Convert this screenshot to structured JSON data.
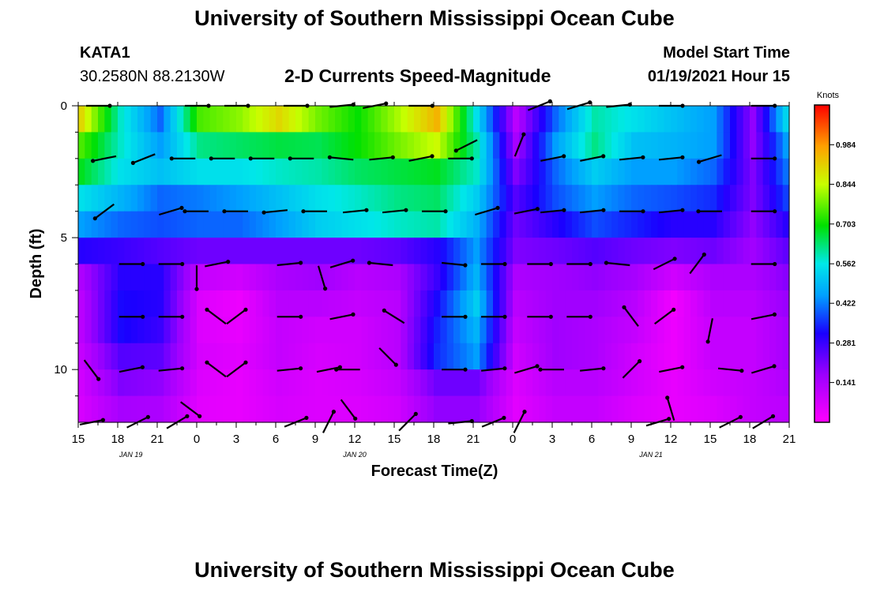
{
  "header": {
    "title": "University of Southern Mississippi Ocean Cube",
    "footer_title": "University of Southern Mississippi Ocean Cube",
    "station_id": "KATA1",
    "station_coords": "30.2580N 88.2130W",
    "subtitle": "2-D Currents Speed-Magnitude",
    "model_start_label": "Model Start Time",
    "model_start_value": "01/19/2021 Hour 15"
  },
  "chart_data": {
    "type": "heatmap",
    "xlabel": "Forecast Time(Z)",
    "ylabel": "Depth (ft)",
    "x_range_hours": [
      0,
      54
    ],
    "y_range_ft": [
      0,
      12
    ],
    "x_ticks": [
      {
        "hour": 0,
        "label": "15"
      },
      {
        "hour": 3,
        "label": "18"
      },
      {
        "hour": 6,
        "label": "21"
      },
      {
        "hour": 9,
        "label": "0"
      },
      {
        "hour": 12,
        "label": "3"
      },
      {
        "hour": 15,
        "label": "6"
      },
      {
        "hour": 18,
        "label": "9"
      },
      {
        "hour": 21,
        "label": "12"
      },
      {
        "hour": 24,
        "label": "15"
      },
      {
        "hour": 27,
        "label": "18"
      },
      {
        "hour": 30,
        "label": "21"
      },
      {
        "hour": 33,
        "label": "0"
      },
      {
        "hour": 36,
        "label": "3"
      },
      {
        "hour": 39,
        "label": "6"
      },
      {
        "hour": 42,
        "label": "9"
      },
      {
        "hour": 45,
        "label": "12"
      },
      {
        "hour": 48,
        "label": "15"
      },
      {
        "hour": 51,
        "label": "18"
      },
      {
        "hour": 54,
        "label": "21"
      }
    ],
    "y_ticks": [
      {
        "depth": 0,
        "label": "0"
      },
      {
        "depth": 5,
        "label": "5"
      },
      {
        "depth": 10,
        "label": "10"
      }
    ],
    "date_labels": [
      {
        "hour": 4,
        "label": "JAN 19"
      },
      {
        "hour": 21,
        "label": "JAN 20"
      },
      {
        "hour": 43.5,
        "label": "JAN 21"
      }
    ],
    "colorbar": {
      "unit": "Knots",
      "min": 0.0,
      "max": 1.125,
      "ticks": [
        "0.984",
        "0.844",
        "0.703",
        "0.562",
        "0.422",
        "0.281",
        "0.141"
      ],
      "tick_values": [
        0.984,
        0.844,
        0.703,
        0.562,
        0.422,
        0.281,
        0.141
      ]
    },
    "depth_levels_ft": [
      0.5,
      1.5,
      2.5,
      3.5,
      4.5,
      5.5,
      6.5,
      7.5,
      8.5,
      9.5,
      10.5,
      11.5
    ],
    "time_columns_hours": [
      0,
      3,
      6,
      9,
      12,
      15,
      18,
      21,
      24,
      27,
      30,
      33,
      36,
      39,
      42,
      45,
      48,
      51,
      54
    ],
    "speed_knots": [
      [
        0.9,
        0.58,
        0.4,
        0.75,
        0.8,
        0.9,
        0.78,
        0.7,
        0.82,
        0.95,
        0.55,
        0.12,
        0.4,
        0.6,
        0.55,
        0.5,
        0.45,
        0.18,
        0.6
      ],
      [
        0.75,
        0.58,
        0.45,
        0.62,
        0.64,
        0.66,
        0.65,
        0.7,
        0.78,
        0.85,
        0.6,
        0.15,
        0.45,
        0.62,
        0.5,
        0.48,
        0.45,
        0.18,
        0.5
      ],
      [
        0.68,
        0.55,
        0.5,
        0.55,
        0.55,
        0.58,
        0.6,
        0.64,
        0.66,
        0.68,
        0.58,
        0.2,
        0.4,
        0.52,
        0.45,
        0.45,
        0.4,
        0.2,
        0.45
      ],
      [
        0.55,
        0.48,
        0.4,
        0.42,
        0.45,
        0.5,
        0.55,
        0.58,
        0.62,
        0.64,
        0.52,
        0.25,
        0.38,
        0.45,
        0.4,
        0.38,
        0.35,
        0.2,
        0.4
      ],
      [
        0.45,
        0.4,
        0.38,
        0.4,
        0.4,
        0.45,
        0.52,
        0.55,
        0.58,
        0.6,
        0.48,
        0.22,
        0.3,
        0.38,
        0.34,
        0.3,
        0.3,
        0.18,
        0.32
      ],
      [
        0.3,
        0.28,
        0.25,
        0.22,
        0.22,
        0.22,
        0.22,
        0.22,
        0.24,
        0.3,
        0.45,
        0.2,
        0.22,
        0.25,
        0.22,
        0.2,
        0.22,
        0.16,
        0.25
      ],
      [
        0.14,
        0.3,
        0.3,
        0.1,
        0.08,
        0.14,
        0.16,
        0.12,
        0.14,
        0.28,
        0.48,
        0.14,
        0.16,
        0.18,
        0.15,
        0.08,
        0.14,
        0.14,
        0.2
      ],
      [
        0.12,
        0.32,
        0.3,
        0.06,
        0.03,
        0.12,
        0.12,
        0.1,
        0.12,
        0.32,
        0.52,
        0.12,
        0.16,
        0.16,
        0.12,
        0.02,
        0.12,
        0.12,
        0.18
      ],
      [
        0.12,
        0.32,
        0.28,
        0.06,
        0.04,
        0.1,
        0.08,
        0.08,
        0.12,
        0.34,
        0.48,
        0.1,
        0.16,
        0.14,
        0.1,
        0.03,
        0.1,
        0.1,
        0.16
      ],
      [
        0.1,
        0.25,
        0.24,
        0.07,
        0.05,
        0.1,
        0.07,
        0.08,
        0.12,
        0.35,
        0.45,
        0.08,
        0.16,
        0.14,
        0.08,
        0.03,
        0.1,
        0.1,
        0.16
      ],
      [
        0.08,
        0.2,
        0.18,
        0.06,
        0.04,
        0.08,
        0.06,
        0.07,
        0.1,
        0.22,
        0.22,
        0.06,
        0.12,
        0.12,
        0.08,
        0.04,
        0.08,
        0.1,
        0.14
      ],
      [
        0.07,
        0.15,
        0.14,
        0.05,
        0.04,
        0.07,
        0.06,
        0.06,
        0.08,
        0.18,
        0.18,
        0.05,
        0.1,
        0.1,
        0.06,
        0.04,
        0.06,
        0.1,
        0.12
      ]
    ],
    "vectors": [
      {
        "hour": 1.5,
        "depth": 0,
        "dx": 1,
        "dy": 0
      },
      {
        "hour": 9,
        "depth": 0,
        "dx": 1,
        "dy": 0
      },
      {
        "hour": 12,
        "depth": 0,
        "dx": 1,
        "dy": 0
      },
      {
        "hour": 16.5,
        "depth": 0,
        "dx": 1,
        "dy": 0
      },
      {
        "hour": 20,
        "depth": 0,
        "dx": 1,
        "dy": 0.1
      },
      {
        "hour": 22.5,
        "depth": 0,
        "dx": 1,
        "dy": 0.2
      },
      {
        "hour": 26,
        "depth": 0,
        "dx": 1,
        "dy": 0
      },
      {
        "hour": 35,
        "depth": 0,
        "dx": 1,
        "dy": 0.4
      },
      {
        "hour": 38,
        "depth": 0,
        "dx": 1,
        "dy": 0.3
      },
      {
        "hour": 41,
        "depth": 0,
        "dx": 1,
        "dy": 0.1
      },
      {
        "hour": 45,
        "depth": 0,
        "dx": 1,
        "dy": 0
      },
      {
        "hour": 52,
        "depth": 0,
        "dx": 1,
        "dy": 0
      },
      {
        "hour": 2,
        "depth": 2,
        "dx": -1,
        "dy": -0.2
      },
      {
        "hour": 5,
        "depth": 2,
        "dx": -1,
        "dy": -0.4
      },
      {
        "hour": 8,
        "depth": 2,
        "dx": -1,
        "dy": 0
      },
      {
        "hour": 11,
        "depth": 2,
        "dx": -1,
        "dy": 0
      },
      {
        "hour": 14,
        "depth": 2,
        "dx": -1,
        "dy": 0
      },
      {
        "hour": 17,
        "depth": 2,
        "dx": -1,
        "dy": 0
      },
      {
        "hour": 20,
        "depth": 2,
        "dx": -1,
        "dy": 0.1
      },
      {
        "hour": 23,
        "depth": 2,
        "dx": 1,
        "dy": 0.1
      },
      {
        "hour": 26,
        "depth": 2,
        "dx": 1,
        "dy": 0.2
      },
      {
        "hour": 29,
        "depth": 2,
        "dx": 1,
        "dy": 0
      },
      {
        "hour": 29.5,
        "depth": 1.5,
        "dx": -1,
        "dy": -0.5
      },
      {
        "hour": 33.5,
        "depth": 1.5,
        "dx": 0.4,
        "dy": 1
      },
      {
        "hour": 36,
        "depth": 2,
        "dx": 1,
        "dy": 0.2
      },
      {
        "hour": 39,
        "depth": 2,
        "dx": 1,
        "dy": 0.2
      },
      {
        "hour": 42,
        "depth": 2,
        "dx": 1,
        "dy": 0.1
      },
      {
        "hour": 45,
        "depth": 2,
        "dx": 1,
        "dy": 0.1
      },
      {
        "hour": 48,
        "depth": 2,
        "dx": -1,
        "dy": -0.3
      },
      {
        "hour": 52,
        "depth": 2,
        "dx": 1,
        "dy": 0
      },
      {
        "hour": 2,
        "depth": 4,
        "dx": -0.8,
        "dy": -0.6
      },
      {
        "hour": 7,
        "depth": 4,
        "dx": 1,
        "dy": 0.3
      },
      {
        "hour": 9,
        "depth": 4,
        "dx": -1,
        "dy": 0
      },
      {
        "hour": 12,
        "depth": 4,
        "dx": -1,
        "dy": 0
      },
      {
        "hour": 15,
        "depth": 4,
        "dx": -1,
        "dy": -0.1
      },
      {
        "hour": 18,
        "depth": 4,
        "dx": -1,
        "dy": 0
      },
      {
        "hour": 21,
        "depth": 4,
        "dx": 1,
        "dy": 0.1
      },
      {
        "hour": 24,
        "depth": 4,
        "dx": 1,
        "dy": 0.1
      },
      {
        "hour": 27,
        "depth": 4,
        "dx": 1,
        "dy": 0
      },
      {
        "hour": 31,
        "depth": 4,
        "dx": 1,
        "dy": 0.3
      },
      {
        "hour": 34,
        "depth": 4,
        "dx": 1,
        "dy": 0.2
      },
      {
        "hour": 36,
        "depth": 4,
        "dx": 1,
        "dy": 0.1
      },
      {
        "hour": 39,
        "depth": 4,
        "dx": 1,
        "dy": 0.1
      },
      {
        "hour": 42,
        "depth": 4,
        "dx": 1,
        "dy": 0
      },
      {
        "hour": 45,
        "depth": 4,
        "dx": 1,
        "dy": 0.1
      },
      {
        "hour": 48,
        "depth": 4,
        "dx": -1,
        "dy": 0
      },
      {
        "hour": 52,
        "depth": 4,
        "dx": 1,
        "dy": 0
      },
      {
        "hour": 4,
        "depth": 6,
        "dx": 1,
        "dy": 0
      },
      {
        "hour": 7,
        "depth": 6,
        "dx": 1,
        "dy": 0
      },
      {
        "hour": 10.5,
        "depth": 6,
        "dx": 1,
        "dy": 0.2
      },
      {
        "hour": 16,
        "depth": 6,
        "dx": 1,
        "dy": 0.1
      },
      {
        "hour": 20,
        "depth": 6,
        "dx": 1,
        "dy": 0.3
      },
      {
        "hour": 23,
        "depth": 6,
        "dx": -1,
        "dy": 0.1
      },
      {
        "hour": 28.5,
        "depth": 6,
        "dx": 1,
        "dy": -0.1
      },
      {
        "hour": 31.5,
        "depth": 6,
        "dx": 1,
        "dy": 0
      },
      {
        "hour": 35,
        "depth": 6,
        "dx": 1,
        "dy": 0
      },
      {
        "hour": 38,
        "depth": 6,
        "dx": 1,
        "dy": 0
      },
      {
        "hour": 41,
        "depth": 6,
        "dx": -1,
        "dy": 0.1
      },
      {
        "hour": 44.5,
        "depth": 6,
        "dx": 1,
        "dy": 0.5
      },
      {
        "hour": 47,
        "depth": 6,
        "dx": 0.6,
        "dy": 0.8
      },
      {
        "hour": 52,
        "depth": 6,
        "dx": 1,
        "dy": 0
      },
      {
        "hour": 9,
        "depth": 6.5,
        "dx": 0,
        "dy": -1
      },
      {
        "hour": 18.5,
        "depth": 6.5,
        "dx": 0.3,
        "dy": -1
      },
      {
        "hour": 4,
        "depth": 8,
        "dx": 1,
        "dy": 0
      },
      {
        "hour": 7,
        "depth": 8,
        "dx": 1,
        "dy": 0
      },
      {
        "hour": 10.5,
        "depth": 8,
        "dx": -0.8,
        "dy": 0.6
      },
      {
        "hour": 12,
        "depth": 8,
        "dx": 0.8,
        "dy": 0.6
      },
      {
        "hour": 16,
        "depth": 8,
        "dx": 1,
        "dy": 0
      },
      {
        "hour": 20,
        "depth": 8,
        "dx": 1,
        "dy": 0.2
      },
      {
        "hour": 24,
        "depth": 8,
        "dx": -0.8,
        "dy": 0.5
      },
      {
        "hour": 28.5,
        "depth": 8,
        "dx": 1,
        "dy": 0
      },
      {
        "hour": 31.5,
        "depth": 8,
        "dx": 1,
        "dy": 0
      },
      {
        "hour": 35,
        "depth": 8,
        "dx": 1,
        "dy": 0
      },
      {
        "hour": 38,
        "depth": 8,
        "dx": 1,
        "dy": 0
      },
      {
        "hour": 42,
        "depth": 8,
        "dx": -0.6,
        "dy": 0.8
      },
      {
        "hour": 44.5,
        "depth": 8,
        "dx": 0.8,
        "dy": 0.6
      },
      {
        "hour": 48,
        "depth": 8.5,
        "dx": -0.2,
        "dy": -1
      },
      {
        "hour": 52,
        "depth": 8,
        "dx": 1,
        "dy": 0.2
      },
      {
        "hour": 1,
        "depth": 10,
        "dx": 0.6,
        "dy": -0.8
      },
      {
        "hour": 4,
        "depth": 10,
        "dx": 1,
        "dy": 0.2
      },
      {
        "hour": 7,
        "depth": 10,
        "dx": 1,
        "dy": 0.1
      },
      {
        "hour": 10.5,
        "depth": 10,
        "dx": -0.8,
        "dy": 0.6
      },
      {
        "hour": 12,
        "depth": 10,
        "dx": 0.8,
        "dy": 0.6
      },
      {
        "hour": 16,
        "depth": 10,
        "dx": 1,
        "dy": 0.1
      },
      {
        "hour": 19,
        "depth": 10,
        "dx": 1,
        "dy": 0.2
      },
      {
        "hour": 20.5,
        "depth": 10,
        "dx": -1,
        "dy": 0
      },
      {
        "hour": 23.5,
        "depth": 9.5,
        "dx": 0.7,
        "dy": -0.7
      },
      {
        "hour": 28.5,
        "depth": 10,
        "dx": 1,
        "dy": 0
      },
      {
        "hour": 31.5,
        "depth": 10,
        "dx": 1,
        "dy": 0.1
      },
      {
        "hour": 34,
        "depth": 10,
        "dx": 1,
        "dy": 0.3
      },
      {
        "hour": 36,
        "depth": 10,
        "dx": -1,
        "dy": 0
      },
      {
        "hour": 39,
        "depth": 10,
        "dx": 1,
        "dy": 0.1
      },
      {
        "hour": 42,
        "depth": 10,
        "dx": 0.7,
        "dy": 0.7
      },
      {
        "hour": 45,
        "depth": 10,
        "dx": 1,
        "dy": 0.2
      },
      {
        "hour": 49.5,
        "depth": 10,
        "dx": 1,
        "dy": -0.1
      },
      {
        "hour": 52,
        "depth": 10,
        "dx": 1,
        "dy": 0.3
      },
      {
        "hour": 1,
        "depth": 12,
        "dx": 1,
        "dy": 0.2
      },
      {
        "hour": 4.5,
        "depth": 12,
        "dx": 1,
        "dy": 0.5
      },
      {
        "hour": 7.5,
        "depth": 12,
        "dx": 1,
        "dy": 0.6
      },
      {
        "hour": 8.5,
        "depth": 11.5,
        "dx": 0.8,
        "dy": -0.6
      },
      {
        "hour": 16.5,
        "depth": 12,
        "dx": 1,
        "dy": 0.4
      },
      {
        "hour": 19,
        "depth": 12,
        "dx": 0.5,
        "dy": 1
      },
      {
        "hour": 20.5,
        "depth": 11.5,
        "dx": 0.6,
        "dy": -0.8
      },
      {
        "hour": 25,
        "depth": 12,
        "dx": 0.7,
        "dy": 0.7
      },
      {
        "hour": 29,
        "depth": 12,
        "dx": 1,
        "dy": 0.1
      },
      {
        "hour": 31.5,
        "depth": 12,
        "dx": 1,
        "dy": 0.4
      },
      {
        "hour": 33.5,
        "depth": 12,
        "dx": 0.5,
        "dy": 1
      },
      {
        "hour": 44,
        "depth": 12,
        "dx": 1,
        "dy": 0.3
      },
      {
        "hour": 45,
        "depth": 11.5,
        "dx": -0.3,
        "dy": 1
      },
      {
        "hour": 49.5,
        "depth": 12,
        "dx": 1,
        "dy": 0.5
      },
      {
        "hour": 52,
        "depth": 12,
        "dx": 1,
        "dy": 0.6
      }
    ]
  }
}
